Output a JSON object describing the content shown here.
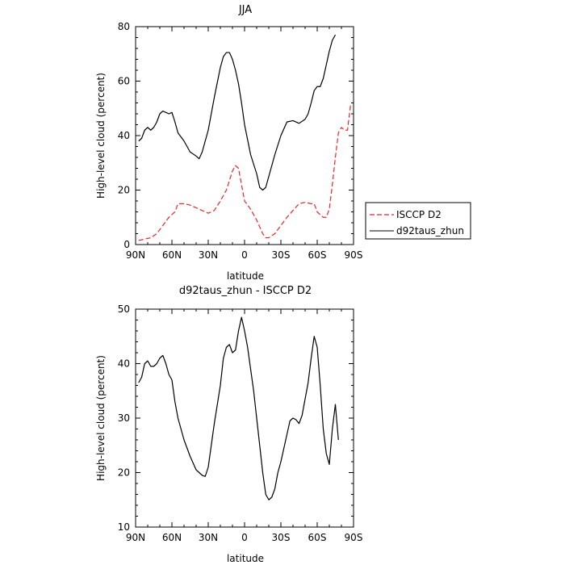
{
  "chart_data": [
    {
      "type": "line",
      "title": "JJA",
      "xlabel": "latitude",
      "ylabel": "High-level cloud (percent)",
      "xlim": [
        90,
        -90
      ],
      "ylim": [
        0,
        80
      ],
      "x_ticks": [
        90,
        60,
        30,
        0,
        -30,
        -60,
        -90
      ],
      "x_tick_labels": [
        "90N",
        "60N",
        "30N",
        "0",
        "30S",
        "60S",
        "90S"
      ],
      "y_ticks": [
        0,
        20,
        40,
        60,
        80
      ],
      "y_tick_labels": [
        "0",
        "20",
        "40",
        "60",
        "80"
      ],
      "grid": false,
      "legend_position": "right",
      "series": [
        {
          "name": "ISCCP D2",
          "color": "#e8262c",
          "dash": "dashed",
          "points": [
            [
              87.5,
              1.5
            ],
            [
              82.5,
              2
            ],
            [
              77.5,
              2.5
            ],
            [
              72.5,
              4
            ],
            [
              67.5,
              7
            ],
            [
              62.5,
              10
            ],
            [
              57.5,
              12
            ],
            [
              55,
              15
            ],
            [
              50,
              15
            ],
            [
              45,
              14.5
            ],
            [
              40,
              13.5
            ],
            [
              35,
              12.5
            ],
            [
              30,
              11.5
            ],
            [
              25,
              12.5
            ],
            [
              20,
              16
            ],
            [
              15,
              20
            ],
            [
              10,
              27
            ],
            [
              7.5,
              29
            ],
            [
              5,
              28
            ],
            [
              2.5,
              22
            ],
            [
              0,
              16
            ],
            [
              -5,
              13
            ],
            [
              -10,
              9
            ],
            [
              -15,
              4
            ],
            [
              -17.5,
              2.5
            ],
            [
              -20,
              2.5
            ],
            [
              -25,
              4
            ],
            [
              -30,
              7
            ],
            [
              -35,
              10
            ],
            [
              -40,
              12.5
            ],
            [
              -45,
              15
            ],
            [
              -50,
              15.5
            ],
            [
              -55,
              15
            ],
            [
              -57.5,
              15
            ],
            [
              -60,
              12
            ],
            [
              -65,
              10
            ],
            [
              -67.5,
              10
            ],
            [
              -70,
              13
            ],
            [
              -72.5,
              22
            ],
            [
              -75,
              32
            ],
            [
              -77.5,
              41
            ],
            [
              -80,
              43
            ],
            [
              -82.5,
              42
            ],
            [
              -85,
              42
            ],
            [
              -87.5,
              51
            ]
          ]
        },
        {
          "name": "d92taus_zhun",
          "color": "#000000",
          "dash": "solid",
          "points": [
            [
              87.5,
              38
            ],
            [
              85,
              39
            ],
            [
              82.5,
              42
            ],
            [
              80,
              43
            ],
            [
              77.5,
              42
            ],
            [
              75,
              43
            ],
            [
              72.5,
              45
            ],
            [
              70,
              48
            ],
            [
              67.5,
              49
            ],
            [
              65,
              48.5
            ],
            [
              62.5,
              48
            ],
            [
              60,
              48.5
            ],
            [
              57.5,
              45
            ],
            [
              55,
              41
            ],
            [
              50,
              38
            ],
            [
              45,
              34
            ],
            [
              40,
              32.5
            ],
            [
              37.5,
              31.5
            ],
            [
              35,
              34
            ],
            [
              30,
              42
            ],
            [
              25,
              54
            ],
            [
              20,
              65
            ],
            [
              17.5,
              69
            ],
            [
              15,
              70.5
            ],
            [
              12.5,
              70.5
            ],
            [
              10,
              68
            ],
            [
              7.5,
              64
            ],
            [
              5,
              59
            ],
            [
              2.5,
              52
            ],
            [
              0,
              44
            ],
            [
              -5,
              33
            ],
            [
              -10,
              26
            ],
            [
              -12.5,
              21
            ],
            [
              -15,
              20
            ],
            [
              -17.5,
              21
            ],
            [
              -20,
              25
            ],
            [
              -25,
              33
            ],
            [
              -30,
              40
            ],
            [
              -35,
              45
            ],
            [
              -40,
              45.5
            ],
            [
              -45,
              44.5
            ],
            [
              -50,
              46
            ],
            [
              -52.5,
              48
            ],
            [
              -55,
              52
            ],
            [
              -57.5,
              56.5
            ],
            [
              -60,
              58
            ],
            [
              -62.5,
              58
            ],
            [
              -65,
              61
            ],
            [
              -67.5,
              66
            ],
            [
              -70,
              71
            ],
            [
              -72.5,
              75
            ],
            [
              -75,
              77
            ]
          ]
        }
      ]
    },
    {
      "type": "line",
      "title": "d92taus_zhun - ISCCP D2",
      "xlabel": "latitude",
      "ylabel": "High-level cloud (percent)",
      "xlim": [
        90,
        -90
      ],
      "ylim": [
        10,
        50
      ],
      "x_ticks": [
        90,
        60,
        30,
        0,
        -30,
        -60,
        -90
      ],
      "x_tick_labels": [
        "90N",
        "60N",
        "30N",
        "0",
        "30S",
        "60S",
        "90S"
      ],
      "y_ticks": [
        10,
        20,
        30,
        40,
        50
      ],
      "y_tick_labels": [
        "10",
        "20",
        "30",
        "40",
        "50"
      ],
      "grid": false,
      "series": [
        {
          "color": "#000000",
          "dash": "solid",
          "points": [
            [
              87.5,
              36.5
            ],
            [
              85,
              37.5
            ],
            [
              82.5,
              40
            ],
            [
              80,
              40.5
            ],
            [
              77.5,
              39.5
            ],
            [
              75,
              39.5
            ],
            [
              72.5,
              40
            ],
            [
              70,
              41
            ],
            [
              67.5,
              41.5
            ],
            [
              65,
              40
            ],
            [
              62.5,
              38
            ],
            [
              60,
              37
            ],
            [
              57.5,
              33
            ],
            [
              55,
              30
            ],
            [
              50,
              26
            ],
            [
              45,
              23
            ],
            [
              40,
              20.5
            ],
            [
              35,
              19.5
            ],
            [
              32.5,
              19.3
            ],
            [
              30,
              21
            ],
            [
              25,
              29
            ],
            [
              20,
              36
            ],
            [
              17.5,
              41
            ],
            [
              15,
              43
            ],
            [
              12.5,
              43.5
            ],
            [
              10,
              42
            ],
            [
              7.5,
              42.5
            ],
            [
              5,
              46
            ],
            [
              2.5,
              48.5
            ],
            [
              0,
              46
            ],
            [
              -2.5,
              43
            ],
            [
              -5,
              39
            ],
            [
              -7.5,
              35
            ],
            [
              -10,
              30
            ],
            [
              -12.5,
              25
            ],
            [
              -15,
              20
            ],
            [
              -17.5,
              16
            ],
            [
              -20,
              15
            ],
            [
              -22.5,
              15.5
            ],
            [
              -25,
              17
            ],
            [
              -27.5,
              20
            ],
            [
              -30,
              22
            ],
            [
              -32.5,
              24.5
            ],
            [
              -35,
              27
            ],
            [
              -37.5,
              29.5
            ],
            [
              -40,
              30
            ],
            [
              -42.5,
              29.7
            ],
            [
              -45,
              29
            ],
            [
              -47.5,
              30.5
            ],
            [
              -50,
              33.5
            ],
            [
              -52.5,
              36.5
            ],
            [
              -55,
              41
            ],
            [
              -57.5,
              45
            ],
            [
              -60,
              43
            ],
            [
              -62.5,
              36
            ],
            [
              -65,
              28
            ],
            [
              -67.5,
              23.5
            ],
            [
              -70,
              21.5
            ],
            [
              -72.5,
              28
            ],
            [
              -75,
              32.5
            ],
            [
              -77.5,
              26
            ]
          ]
        }
      ]
    }
  ]
}
